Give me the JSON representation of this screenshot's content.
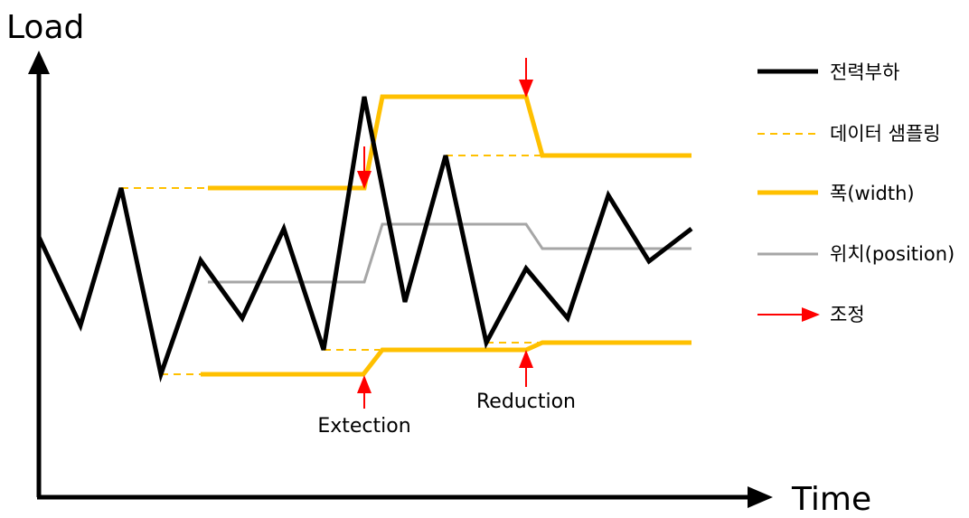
{
  "diagram": {
    "y_axis_label": "Load",
    "x_axis_label": "Time",
    "annotations": {
      "expansion": "Extection",
      "reduction": "Reduction"
    },
    "legend": [
      {
        "key": "load",
        "label": "전력부하",
        "color": "#000000",
        "style": "solid-thick"
      },
      {
        "key": "sampling",
        "label": "데이터 샘플링",
        "color": "#FFC000",
        "style": "dashed"
      },
      {
        "key": "width",
        "label": "폭(width)",
        "color": "#FFC000",
        "style": "solid-thick"
      },
      {
        "key": "position",
        "label": "위치(position)",
        "color": "#A6A6A6",
        "style": "solid"
      },
      {
        "key": "adjust",
        "label": "조정",
        "color": "#FF0000",
        "style": "arrow"
      }
    ]
  }
}
